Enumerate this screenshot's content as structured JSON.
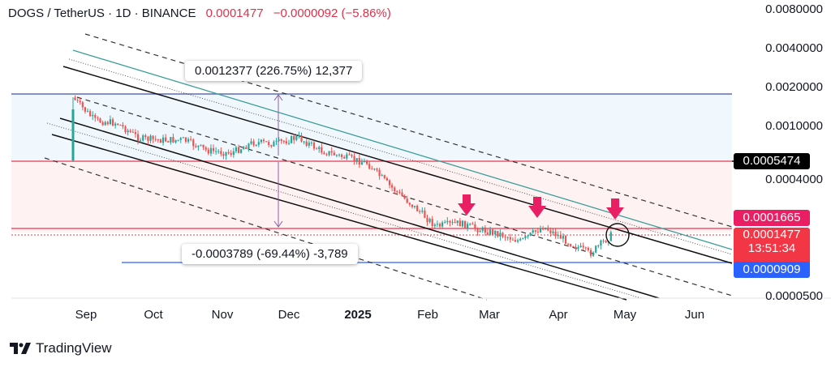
{
  "header": {
    "symbol": "DOGS / TetherUS · 1D · BINANCE",
    "last_price": "0.0001477",
    "change": "−0.0000092 (−5.86%)"
  },
  "price_axis": [
    "0.0080000",
    "0.0040000",
    "0.0020000",
    "0.0010000",
    "0.0004000",
    "0.0000500"
  ],
  "time_axis": [
    "Sep",
    "Oct",
    "Nov",
    "Dec",
    "2025",
    "Feb",
    "Mar",
    "Apr",
    "May",
    "Jun"
  ],
  "price_tags": {
    "black": "0.0005474",
    "pink": "0.0001665",
    "red_price": "0.0001477",
    "countdown": "13:51:34",
    "blue": "0.0000909"
  },
  "measurements": {
    "upper": "0.0012377 (226.75%) 12,377",
    "lower": "-0.0003789 (-69.44%) -3,789"
  },
  "branding": {
    "name": "TradingView"
  },
  "colors": {
    "up": "#26a69a",
    "down": "#ef5350",
    "blue_line": "#2962ff",
    "red_line": "#e53950",
    "teal_line": "#26a69a",
    "arrow": "#e91e63",
    "tag_black": "#000000",
    "tag_pink": "#e91e63",
    "tag_red": "#f23645",
    "tag_blue": "#2962ff"
  },
  "chart_data": {
    "type": "candlestick",
    "symbol": "DOGS / TetherUS",
    "timeframe": "1D",
    "exchange": "BINANCE",
    "y_scale": "log",
    "x_ticks": [
      "Sep",
      "Oct",
      "Nov",
      "Dec",
      "2025",
      "Feb",
      "Mar",
      "Apr",
      "May",
      "Jun"
    ],
    "y_ticks": [
      0.008,
      0.004,
      0.002,
      0.001,
      0.0004,
      5e-05
    ],
    "horizontal_levels": [
      0.0005474,
      0.0001665,
      9.09e-05
    ],
    "last_price": 0.0001477,
    "annotations": [
      "0.0012377 (226.75%) 12,377",
      "-0.0003789 (-69.44%) -3,789"
    ],
    "markers": [
      "three red down arrows at channel resistance",
      "circle at last price"
    ],
    "close_path": [
      {
        "date": "2024-08-26",
        "close": 0.00165
      },
      {
        "date": "2024-09-05",
        "close": 0.0011
      },
      {
        "date": "2024-09-15",
        "close": 0.00105
      },
      {
        "date": "2024-09-25",
        "close": 0.0008
      },
      {
        "date": "2024-10-05",
        "close": 0.00078
      },
      {
        "date": "2024-10-15",
        "close": 0.00078
      },
      {
        "date": "2024-10-25",
        "close": 0.00065
      },
      {
        "date": "2024-11-05",
        "close": 0.00062
      },
      {
        "date": "2024-11-15",
        "close": 0.00075
      },
      {
        "date": "2024-11-25",
        "close": 0.00073
      },
      {
        "date": "2024-12-05",
        "close": 0.00082
      },
      {
        "date": "2024-12-15",
        "close": 0.00065
      },
      {
        "date": "2024-12-25",
        "close": 0.00058
      },
      {
        "date": "2025-01-05",
        "close": 0.00052
      },
      {
        "date": "2025-01-15",
        "close": 0.00035
      },
      {
        "date": "2025-01-25",
        "close": 0.00025
      },
      {
        "date": "2025-02-05",
        "close": 0.00017
      },
      {
        "date": "2025-02-15",
        "close": 0.00018
      },
      {
        "date": "2025-02-25",
        "close": 0.00016
      },
      {
        "date": "2025-03-05",
        "close": 0.00015
      },
      {
        "date": "2025-03-15",
        "close": 0.00013
      },
      {
        "date": "2025-03-25",
        "close": 0.00017
      },
      {
        "date": "2025-04-05",
        "close": 0.00013
      },
      {
        "date": "2025-04-15",
        "close": 0.000105
      },
      {
        "date": "2025-04-25",
        "close": 0.000148
      }
    ]
  }
}
